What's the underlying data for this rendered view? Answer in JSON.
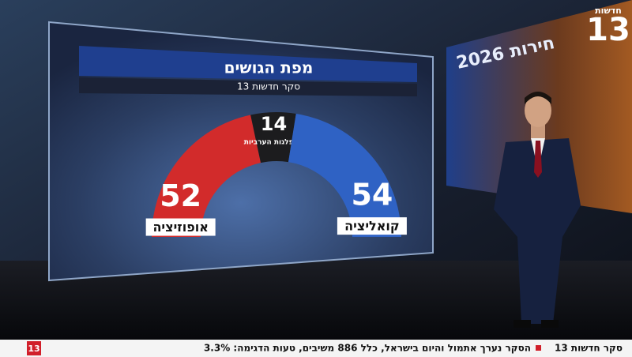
{
  "logo": {
    "channel": "חדשות",
    "number": "13"
  },
  "backdrop_text": "חירות 2026",
  "chart_data": {
    "type": "semi-donut",
    "title": "מפת הגושים",
    "subtitle": "סקר חדשות 13",
    "categories": [
      "אופוזיציה",
      "המפלגות הערביות",
      "קואליציה"
    ],
    "values": [
      52,
      14,
      54
    ],
    "colors": [
      "#d22b2b",
      "#1c1c1e",
      "#2f62c4"
    ]
  },
  "ticker": {
    "label": "סקר חדשות 13",
    "text": "הסקר נערך אתמול והיום בישראל, כלל 886 משיבים, טעות הדגימה: 3.3%"
  }
}
